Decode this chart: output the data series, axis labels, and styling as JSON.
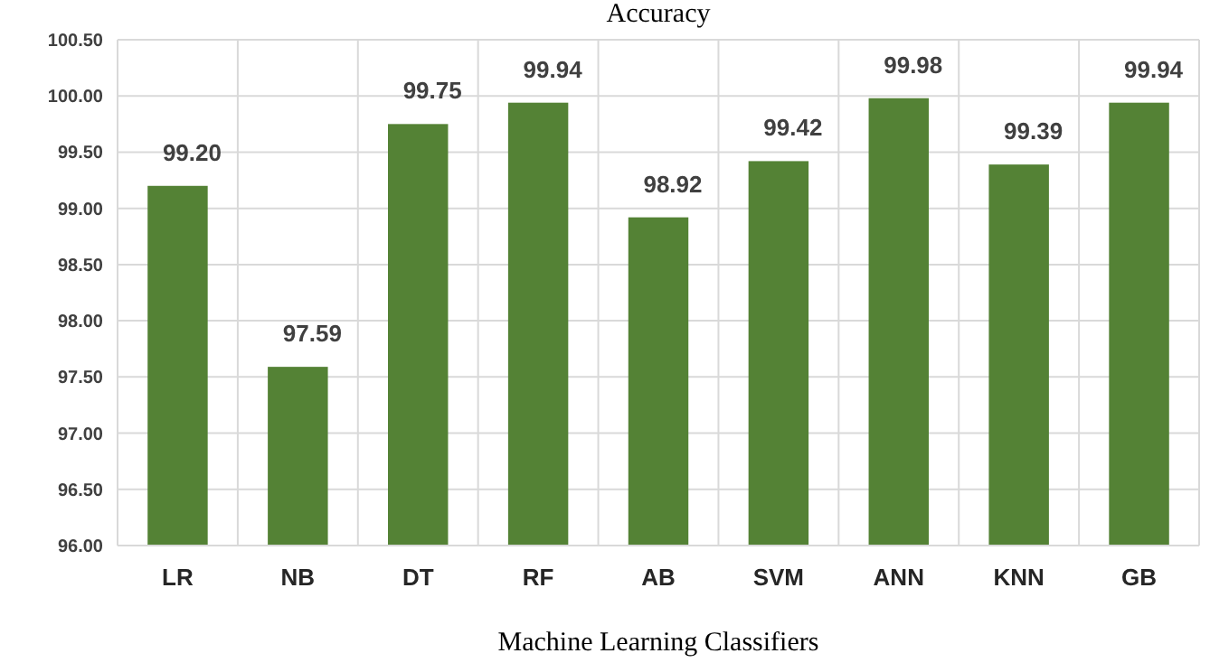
{
  "chart_data": {
    "type": "bar",
    "title": "Accuracy",
    "xlabel": "Machine Learning Classifiers",
    "categories": [
      "LR",
      "NB",
      "DT",
      "RF",
      "AB",
      "SVM",
      "ANN",
      "KNN",
      "GB"
    ],
    "values": [
      99.2,
      97.59,
      99.75,
      99.94,
      98.92,
      99.42,
      99.98,
      99.39,
      99.94
    ],
    "value_labels": [
      "99.20",
      "97.59",
      "99.75",
      "99.94",
      "98.92",
      "99.42",
      "99.98",
      "99.39",
      "99.94"
    ],
    "color": "#548235",
    "ylim": [
      96,
      100.5
    ],
    "yticks": [
      {
        "value": 96,
        "label": "96.00"
      },
      {
        "value": 96.5,
        "label": "96.50"
      },
      {
        "value": 97,
        "label": "97.00"
      },
      {
        "value": 97.5,
        "label": "97.50"
      },
      {
        "value": 98,
        "label": "98.00"
      },
      {
        "value": 98.5,
        "label": "98.50"
      },
      {
        "value": 99,
        "label": "99.00"
      },
      {
        "value": 99.5,
        "label": "99.50"
      },
      {
        "value": 100,
        "label": "100.00"
      },
      {
        "value": 100.5,
        "label": "100.50"
      }
    ],
    "grid": true
  }
}
